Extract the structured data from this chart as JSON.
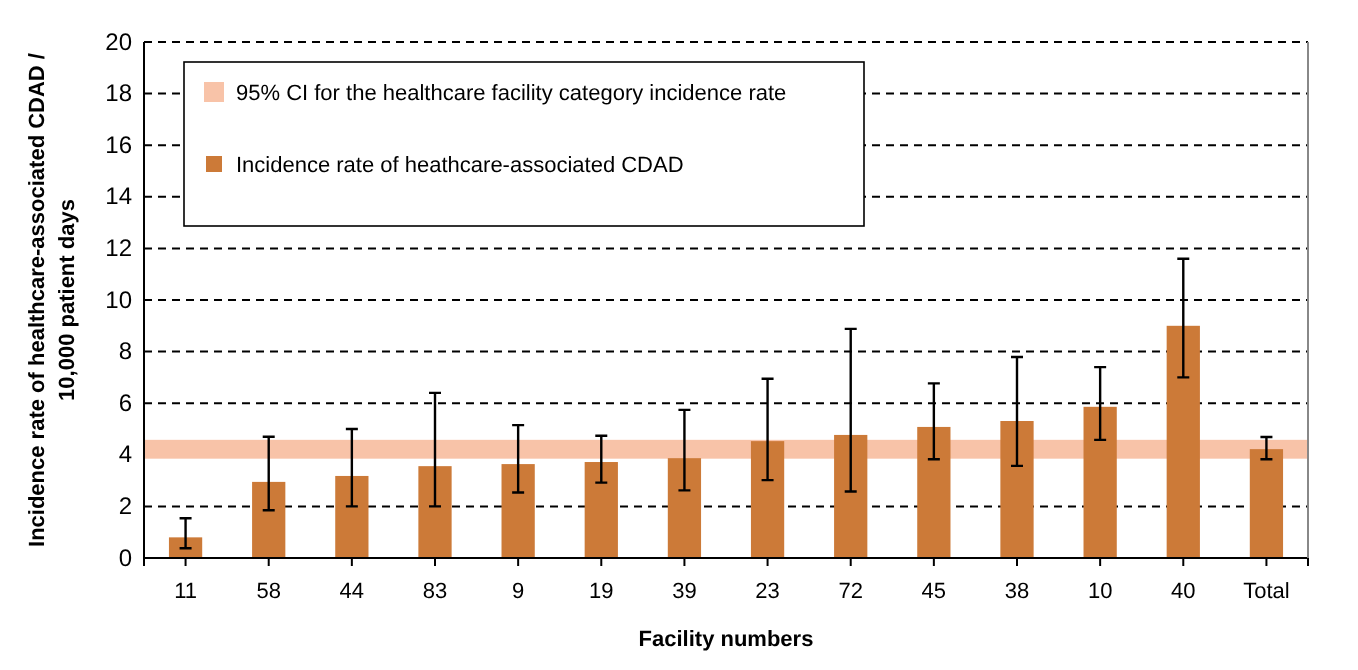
{
  "chart_data": {
    "type": "bar",
    "xlabel": "Facility numbers",
    "ylabel": "Incidence rate of healthcare-associated CDAD / 10,000 patient days",
    "categories": [
      "11",
      "58",
      "44",
      "83",
      "9",
      "19",
      "39",
      "23",
      "72",
      "45",
      "38",
      "10",
      "40",
      "Total"
    ],
    "series": [
      {
        "name": "Incidence rate of heathcare-associated CDAD",
        "color": "#cc7a38",
        "values": [
          0.8,
          2.95,
          3.18,
          3.56,
          3.64,
          3.72,
          3.87,
          4.53,
          4.77,
          5.08,
          5.31,
          5.86,
          9.0,
          4.22
        ],
        "errors": [
          [
            0.38,
            1.54
          ],
          [
            1.85,
            4.7
          ],
          [
            2.0,
            5.0
          ],
          [
            2.0,
            6.4
          ],
          [
            2.54,
            5.15
          ],
          [
            2.92,
            4.74
          ],
          [
            2.62,
            5.74
          ],
          [
            3.02,
            6.95
          ],
          [
            2.58,
            8.88
          ],
          [
            3.83,
            6.77
          ],
          [
            3.57,
            7.79
          ],
          [
            4.58,
            7.4
          ],
          [
            7.0,
            11.6
          ],
          [
            3.83,
            4.69
          ]
        ]
      }
    ],
    "bands": [
      {
        "axis": "y",
        "from": 3.85,
        "to": 4.58,
        "label": "95% CI for the healthcare facility category incidence rate",
        "color": "#f8c3a8"
      }
    ],
    "ylim": [
      0,
      20
    ],
    "yticks": [
      0,
      2,
      4,
      6,
      8,
      10,
      12,
      14,
      16,
      18,
      20
    ],
    "grid": "y",
    "legend": "top left"
  }
}
